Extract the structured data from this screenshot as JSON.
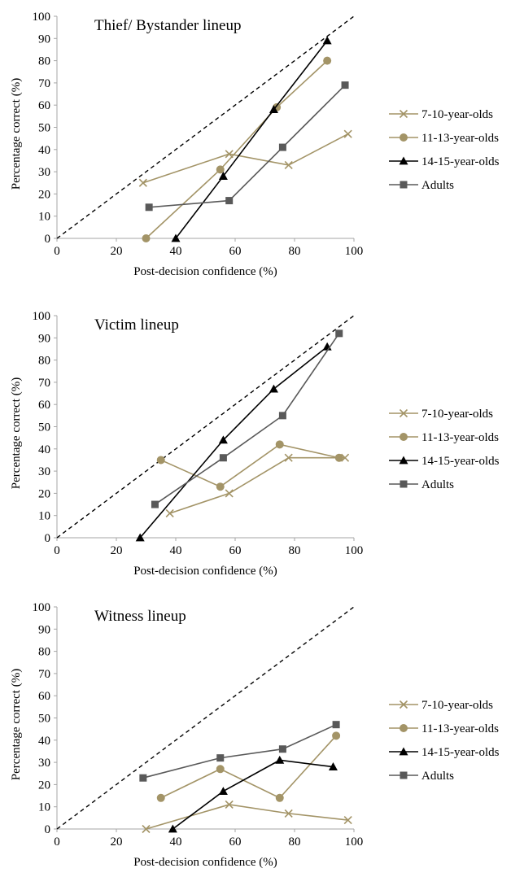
{
  "colors": {
    "kids": "#A39467",
    "teens": "#000000",
    "adults": "#595959",
    "axis": "#A6A6A6",
    "diagonal": "#000000"
  },
  "chart_data": [
    {
      "type": "line",
      "title": "Thief/ Bystander lineup",
      "xlabel": "Post-decision confidence (%)",
      "ylabel": "Percentage correct (%)",
      "xlim": [
        0,
        100
      ],
      "ylim": [
        0,
        100
      ],
      "xticks": [
        0,
        20,
        40,
        60,
        80,
        100
      ],
      "yticks": [
        0,
        10,
        20,
        30,
        40,
        50,
        60,
        70,
        80,
        90,
        100
      ],
      "diagonal": true,
      "legend_position": "right",
      "series": [
        {
          "name": "7-10-year-olds",
          "marker": "x",
          "color": "#A39467",
          "x": [
            29,
            58,
            78,
            98
          ],
          "y": [
            25,
            38,
            33,
            47
          ]
        },
        {
          "name": "11-13-year-olds",
          "marker": "circle",
          "color": "#A39467",
          "x": [
            30,
            55,
            74,
            91
          ],
          "y": [
            0,
            31,
            59,
            80
          ]
        },
        {
          "name": "14-15-year-olds",
          "marker": "triangle",
          "color": "#000000",
          "x": [
            40,
            56,
            73,
            91
          ],
          "y": [
            0,
            28,
            58,
            89
          ]
        },
        {
          "name": "Adults",
          "marker": "square",
          "color": "#595959",
          "x": [
            31,
            58,
            76,
            97
          ],
          "y": [
            14,
            17,
            41,
            69
          ]
        }
      ]
    },
    {
      "type": "line",
      "title": "Victim lineup",
      "xlabel": "Post-decision confidence (%)",
      "ylabel": "Percentage correct (%)",
      "xlim": [
        0,
        100
      ],
      "ylim": [
        0,
        100
      ],
      "xticks": [
        0,
        20,
        40,
        60,
        80,
        100
      ],
      "yticks": [
        0,
        10,
        20,
        30,
        40,
        50,
        60,
        70,
        80,
        90,
        100
      ],
      "diagonal": true,
      "legend_position": "right",
      "series": [
        {
          "name": "7-10-year-olds",
          "marker": "x",
          "color": "#A39467",
          "x": [
            38,
            58,
            78,
            97
          ],
          "y": [
            11,
            20,
            36,
            36
          ]
        },
        {
          "name": "11-13-year-olds",
          "marker": "circle",
          "color": "#A39467",
          "x": [
            35,
            55,
            75,
            95
          ],
          "y": [
            35,
            23,
            42,
            36
          ]
        },
        {
          "name": "14-15-year-olds",
          "marker": "triangle",
          "color": "#000000",
          "x": [
            28,
            56,
            73,
            91
          ],
          "y": [
            0,
            44,
            67,
            86
          ]
        },
        {
          "name": "Adults",
          "marker": "square",
          "color": "#595959",
          "x": [
            33,
            56,
            76,
            95
          ],
          "y": [
            15,
            36,
            55,
            92
          ]
        }
      ]
    },
    {
      "type": "line",
      "title": "Witness lineup",
      "xlabel": "Post-decision confidence (%)",
      "ylabel": "Percentage correct (%)",
      "xlim": [
        0,
        100
      ],
      "ylim": [
        0,
        100
      ],
      "xticks": [
        0,
        20,
        40,
        60,
        80,
        100
      ],
      "yticks": [
        0,
        10,
        20,
        30,
        40,
        50,
        60,
        70,
        80,
        90,
        100
      ],
      "diagonal": true,
      "legend_position": "right",
      "series": [
        {
          "name": "7-10-year-olds",
          "marker": "x",
          "color": "#A39467",
          "x": [
            30,
            58,
            78,
            98
          ],
          "y": [
            0,
            11,
            7,
            4
          ]
        },
        {
          "name": "11-13-year-olds",
          "marker": "circle",
          "color": "#A39467",
          "x": [
            35,
            55,
            75,
            94
          ],
          "y": [
            14,
            27,
            14,
            42
          ]
        },
        {
          "name": "14-15-year-olds",
          "marker": "triangle",
          "color": "#000000",
          "x": [
            39,
            56,
            75,
            93
          ],
          "y": [
            0,
            17,
            31,
            28
          ]
        },
        {
          "name": "Adults",
          "marker": "square",
          "color": "#595959",
          "x": [
            29,
            55,
            76,
            94
          ],
          "y": [
            23,
            32,
            36,
            47
          ]
        }
      ]
    }
  ]
}
